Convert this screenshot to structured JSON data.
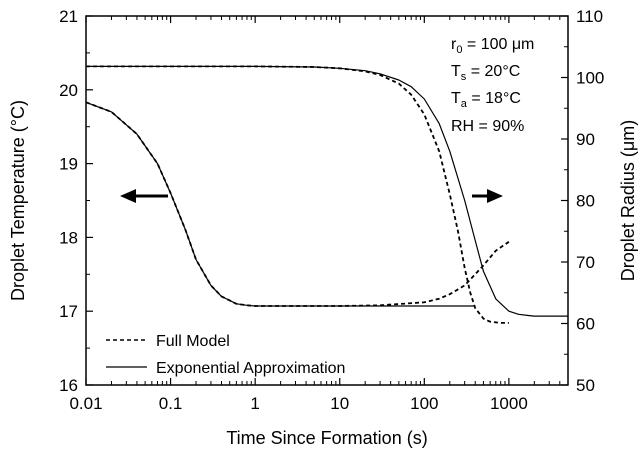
{
  "chart_data": {
    "type": "line",
    "title": "",
    "xlabel": "Time Since Formation (s)",
    "ylabel_left": "Droplet Temperature (°C)",
    "ylabel_right": "Droplet Radius (μm)",
    "xscale": "log",
    "xlim": [
      0.01,
      5000
    ],
    "ylim_left": [
      16,
      21
    ],
    "ylim_right": [
      50,
      110
    ],
    "x_tick_labels": [
      "0.01",
      "0.1",
      "1",
      "10",
      "100",
      "1000"
    ],
    "y_left_tick_labels": [
      "16",
      "17",
      "18",
      "19",
      "20",
      "21"
    ],
    "y_right_tick_labels": [
      "50",
      "60",
      "70",
      "80",
      "90",
      "100",
      "110"
    ],
    "grid": false,
    "legend_position": "bottom-left",
    "legend": [
      {
        "label": "Full Model",
        "style": "dashed"
      },
      {
        "label": "Exponential Approximation",
        "style": "solid"
      }
    ],
    "annotations": {
      "r0": {
        "main": "r",
        "sub": "0",
        "rest": " = 100 μm"
      },
      "ts": {
        "main": "T",
        "sub": "s",
        "rest": " = 20°C"
      },
      "ta": {
        "main": "T",
        "sub": "a",
        "rest": " = 18°C"
      },
      "rh": {
        "main": "RH = 90%",
        "sub": "",
        "rest": ""
      }
    },
    "arrows": [
      {
        "points_to": "left axis",
        "direction": "left"
      },
      {
        "points_to": "right axis",
        "direction": "right"
      }
    ],
    "series": [
      {
        "name": "Full Model",
        "quantity": "temperature",
        "axis": "left",
        "style": "dashed",
        "x": [
          0.01,
          0.02,
          0.04,
          0.07,
          0.1,
          0.15,
          0.2,
          0.3,
          0.4,
          0.6,
          0.8,
          1,
          2,
          5,
          10,
          30,
          100,
          150,
          200,
          300,
          400,
          500,
          700,
          1000
        ],
        "y": [
          19.83,
          19.7,
          19.4,
          19.0,
          18.6,
          18.1,
          17.7,
          17.35,
          17.2,
          17.1,
          17.08,
          17.07,
          17.07,
          17.07,
          17.07,
          17.08,
          17.12,
          17.17,
          17.23,
          17.35,
          17.5,
          17.62,
          17.82,
          17.94
        ]
      },
      {
        "name": "Exponential Approximation",
        "quantity": "temperature",
        "axis": "left",
        "style": "solid",
        "x": [
          0.01,
          0.02,
          0.04,
          0.07,
          0.1,
          0.15,
          0.2,
          0.3,
          0.4,
          0.6,
          0.8,
          1,
          2,
          5,
          10,
          30,
          100,
          400
        ],
        "y": [
          19.83,
          19.7,
          19.4,
          19.0,
          18.6,
          18.1,
          17.7,
          17.35,
          17.2,
          17.1,
          17.08,
          17.07,
          17.07,
          17.07,
          17.07,
          17.07,
          17.07,
          17.07
        ]
      },
      {
        "name": "Full Model",
        "quantity": "radius",
        "axis": "right",
        "style": "dashed",
        "x": [
          0.01,
          1,
          5,
          10,
          20,
          30,
          50,
          70,
          100,
          150,
          200,
          250,
          300,
          350,
          400,
          500,
          600,
          800,
          1000
        ],
        "y": [
          101.8,
          101.8,
          101.7,
          101.5,
          101.0,
          100.4,
          99.0,
          97.2,
          94.0,
          88.0,
          81.0,
          75.0,
          69.0,
          65.0,
          62.5,
          60.8,
          60.3,
          60.1,
          60.1
        ]
      },
      {
        "name": "Exponential Approximation",
        "quantity": "radius",
        "axis": "right",
        "style": "solid",
        "x": [
          0.01,
          1,
          5,
          10,
          20,
          30,
          50,
          70,
          100,
          150,
          200,
          300,
          400,
          500,
          700,
          1000,
          1300,
          1700,
          2000,
          3000,
          5000
        ],
        "y": [
          101.8,
          101.8,
          101.7,
          101.5,
          101.1,
          100.6,
          99.6,
          98.5,
          96.5,
          92.5,
          88.0,
          80.0,
          73.5,
          68.5,
          64.0,
          62.0,
          61.5,
          61.3,
          61.2,
          61.2,
          61.2
        ]
      }
    ]
  }
}
